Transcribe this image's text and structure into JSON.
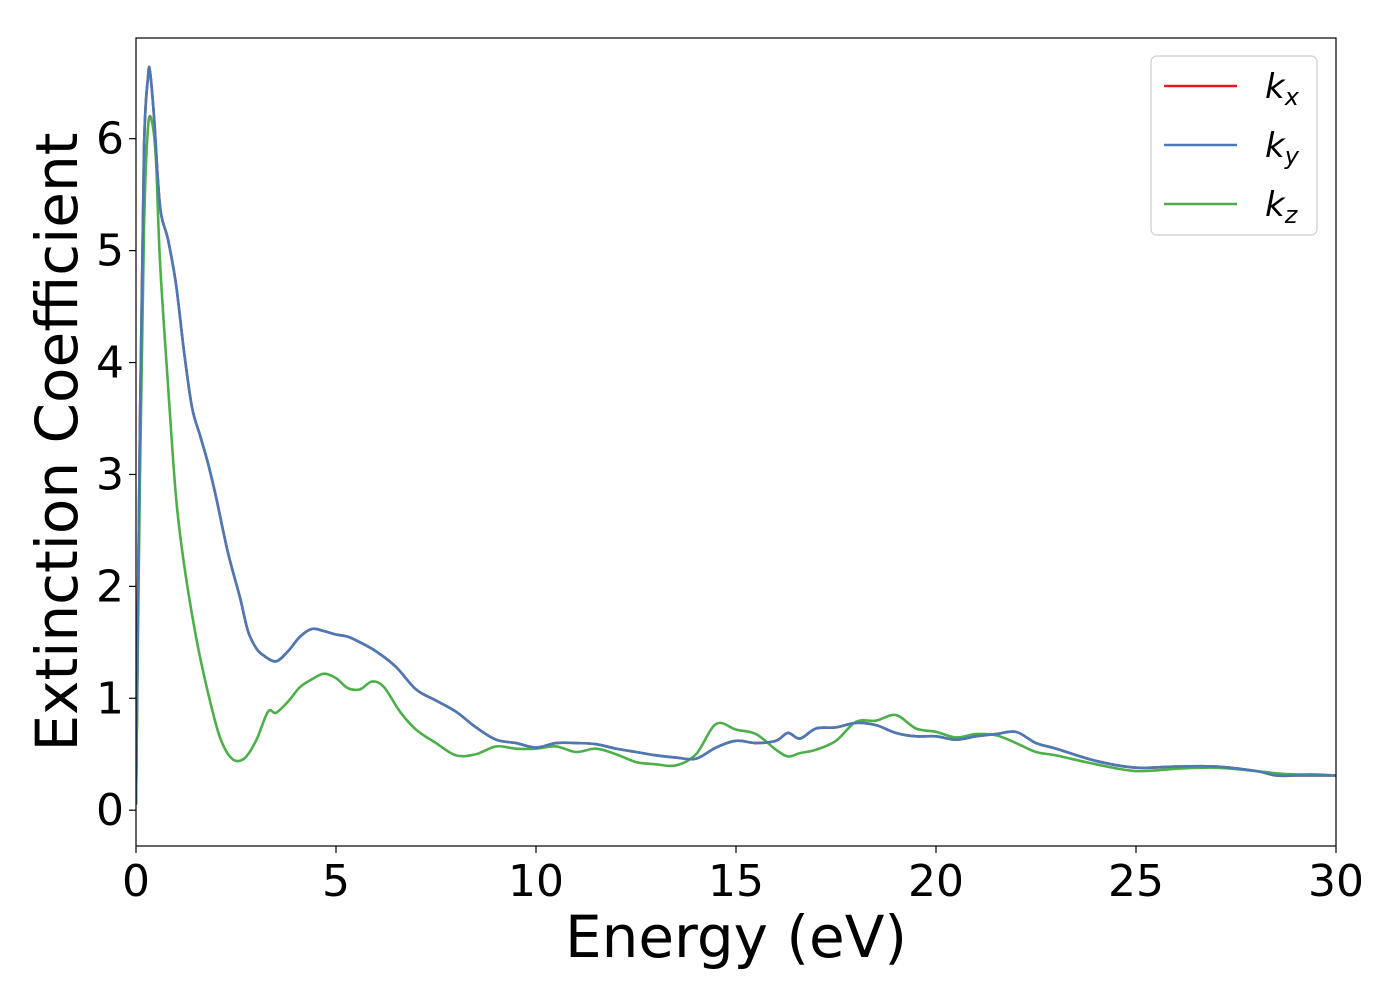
{
  "chart_data": {
    "type": "line",
    "xlabel": "Energy (eV)",
    "ylabel": "Extinction Coefficient",
    "xlim": [
      0,
      30
    ],
    "ylim": [
      -0.32,
      6.9
    ],
    "x_ticks": [
      0,
      5,
      10,
      15,
      20,
      25,
      30
    ],
    "y_ticks": [
      0,
      1,
      2,
      3,
      4,
      5,
      6
    ],
    "grid": false,
    "legend_position": "top-right",
    "series": [
      {
        "name": "k_x",
        "name_base": "k",
        "name_sub": "x",
        "color": "#e41a1c",
        "x": [
          0,
          0.1,
          0.2,
          0.3,
          0.35,
          0.45,
          0.6,
          0.8,
          1.0,
          1.2,
          1.4,
          1.6,
          1.8,
          2.0,
          2.3,
          2.6,
          2.8,
          3.0,
          3.2,
          3.5,
          3.8,
          4.1,
          4.4,
          4.7,
          5.0,
          5.3,
          5.6,
          6.0,
          6.5,
          7.0,
          7.5,
          8.0,
          8.5,
          9.0,
          9.5,
          10.0,
          10.5,
          11.0,
          11.5,
          12.0,
          12.5,
          13.0,
          13.5,
          14.0,
          14.5,
          15.0,
          15.5,
          16.0,
          16.3,
          16.6,
          17.0,
          17.5,
          18.0,
          18.5,
          19.0,
          19.5,
          20.0,
          20.5,
          21.0,
          21.5,
          22.0,
          22.5,
          23.0,
          24.0,
          25.0,
          26.0,
          27.0,
          28.0,
          28.5,
          29.0,
          29.5,
          30.0
        ],
        "y": [
          0.05,
          3.5,
          5.9,
          6.55,
          6.6,
          6.2,
          5.4,
          5.1,
          4.7,
          4.1,
          3.6,
          3.35,
          3.1,
          2.8,
          2.3,
          1.9,
          1.6,
          1.45,
          1.38,
          1.33,
          1.42,
          1.55,
          1.62,
          1.6,
          1.57,
          1.55,
          1.5,
          1.42,
          1.28,
          1.08,
          0.98,
          0.88,
          0.74,
          0.63,
          0.6,
          0.56,
          0.6,
          0.6,
          0.59,
          0.55,
          0.52,
          0.49,
          0.47,
          0.46,
          0.56,
          0.62,
          0.6,
          0.62,
          0.69,
          0.64,
          0.73,
          0.74,
          0.78,
          0.76,
          0.69,
          0.66,
          0.66,
          0.63,
          0.66,
          0.68,
          0.7,
          0.6,
          0.55,
          0.44,
          0.38,
          0.39,
          0.39,
          0.35,
          0.31,
          0.31,
          0.31,
          0.31
        ]
      },
      {
        "name": "k_y",
        "name_base": "k",
        "name_sub": "y",
        "color": "#4a7ab5",
        "x": [
          0,
          0.1,
          0.2,
          0.3,
          0.35,
          0.45,
          0.6,
          0.8,
          1.0,
          1.2,
          1.4,
          1.6,
          1.8,
          2.0,
          2.3,
          2.6,
          2.8,
          3.0,
          3.2,
          3.5,
          3.8,
          4.1,
          4.4,
          4.7,
          5.0,
          5.3,
          5.6,
          6.0,
          6.5,
          7.0,
          7.5,
          8.0,
          8.5,
          9.0,
          9.5,
          10.0,
          10.5,
          11.0,
          11.5,
          12.0,
          12.5,
          13.0,
          13.5,
          14.0,
          14.5,
          15.0,
          15.5,
          16.0,
          16.3,
          16.6,
          17.0,
          17.5,
          18.0,
          18.5,
          19.0,
          19.5,
          20.0,
          20.5,
          21.0,
          21.5,
          22.0,
          22.5,
          23.0,
          24.0,
          25.0,
          26.0,
          27.0,
          28.0,
          28.5,
          29.0,
          29.5,
          30.0
        ],
        "y": [
          0.05,
          3.5,
          5.9,
          6.55,
          6.6,
          6.2,
          5.4,
          5.1,
          4.7,
          4.1,
          3.6,
          3.35,
          3.1,
          2.8,
          2.3,
          1.9,
          1.6,
          1.45,
          1.38,
          1.33,
          1.42,
          1.55,
          1.62,
          1.6,
          1.57,
          1.55,
          1.5,
          1.42,
          1.28,
          1.08,
          0.98,
          0.88,
          0.74,
          0.63,
          0.6,
          0.56,
          0.6,
          0.6,
          0.59,
          0.55,
          0.52,
          0.49,
          0.47,
          0.46,
          0.56,
          0.62,
          0.6,
          0.62,
          0.69,
          0.64,
          0.73,
          0.74,
          0.78,
          0.76,
          0.69,
          0.66,
          0.66,
          0.63,
          0.66,
          0.68,
          0.7,
          0.6,
          0.55,
          0.44,
          0.38,
          0.39,
          0.39,
          0.35,
          0.31,
          0.31,
          0.31,
          0.31
        ]
      },
      {
        "name": "k_z",
        "name_base": "k",
        "name_sub": "z",
        "color": "#4daf4a",
        "x": [
          0,
          0.1,
          0.2,
          0.3,
          0.4,
          0.5,
          0.6,
          0.8,
          1.0,
          1.2,
          1.5,
          1.8,
          2.1,
          2.4,
          2.7,
          3.0,
          3.3,
          3.5,
          3.8,
          4.1,
          4.4,
          4.7,
          5.0,
          5.3,
          5.6,
          5.9,
          6.2,
          6.6,
          7.0,
          7.5,
          8.0,
          8.5,
          9.0,
          9.5,
          10.0,
          10.5,
          11.0,
          11.5,
          12.0,
          12.5,
          13.0,
          13.5,
          14.0,
          14.5,
          15.0,
          15.5,
          16.0,
          16.3,
          16.6,
          17.0,
          17.5,
          18.0,
          18.5,
          19.0,
          19.5,
          20.0,
          20.5,
          21.0,
          21.5,
          22.0,
          22.5,
          23.0,
          24.0,
          25.0,
          26.0,
          27.0,
          28.0,
          28.5,
          29.0,
          29.5,
          30.0
        ],
        "y": [
          0.05,
          3.0,
          5.2,
          6.1,
          6.15,
          5.8,
          4.9,
          3.8,
          2.8,
          2.2,
          1.55,
          1.05,
          0.65,
          0.46,
          0.46,
          0.62,
          0.88,
          0.87,
          0.97,
          1.1,
          1.17,
          1.22,
          1.18,
          1.09,
          1.08,
          1.15,
          1.1,
          0.88,
          0.72,
          0.6,
          0.49,
          0.5,
          0.57,
          0.55,
          0.55,
          0.57,
          0.52,
          0.55,
          0.5,
          0.43,
          0.41,
          0.4,
          0.5,
          0.77,
          0.72,
          0.68,
          0.54,
          0.48,
          0.51,
          0.54,
          0.62,
          0.79,
          0.8,
          0.85,
          0.73,
          0.7,
          0.65,
          0.68,
          0.67,
          0.6,
          0.52,
          0.49,
          0.41,
          0.35,
          0.37,
          0.38,
          0.35,
          0.33,
          0.32,
          0.32,
          0.31
        ]
      }
    ]
  }
}
